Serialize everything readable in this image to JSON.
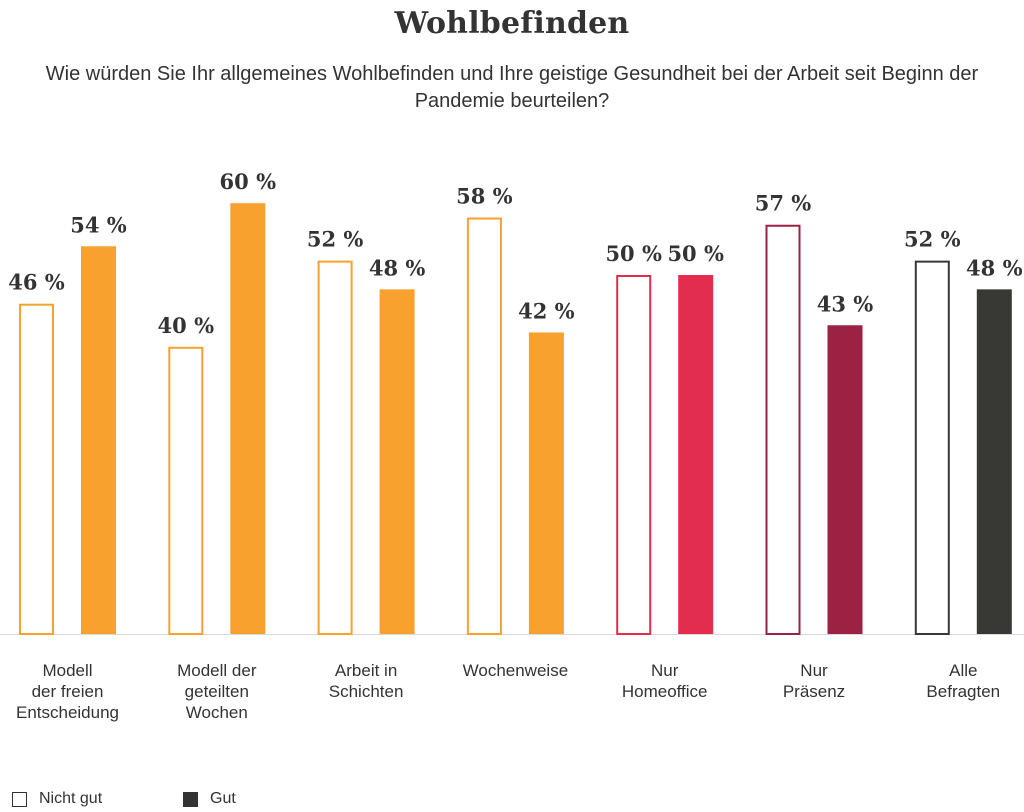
{
  "header": {
    "title": "Wohlbefinden",
    "subtitle": "Wie würden Sie Ihr allgemeines Wohlbefinden und Ihre geistige Gesundheit bei der Arbeit seit Beginn der Pandemie beurteilen?"
  },
  "legend": {
    "nicht_gut": "Nicht gut",
    "gut": "Gut"
  },
  "chart_data": {
    "type": "bar",
    "title": "Wohlbefinden",
    "subtitle": "Wie würden Sie Ihr allgemeines Wohlbefinden und Ihre geistige Gesundheit bei der Arbeit seit Beginn der Pandemie beurteilen?",
    "value_suffix": " %",
    "ylim": [
      0,
      60
    ],
    "grid": false,
    "legend_position": "bottom-left",
    "categories": [
      {
        "label": [
          "Modell",
          "der freien",
          "Entscheidung"
        ],
        "color": "#F9A12E"
      },
      {
        "label": [
          "Modell der",
          "geteilten",
          "Wochen"
        ],
        "color": "#F9A12E"
      },
      {
        "label": [
          "Arbeit in",
          "Schichten"
        ],
        "color": "#F9A12E"
      },
      {
        "label": [
          "Wochenweise"
        ],
        "color": "#F9A12E"
      },
      {
        "label": [
          "Nur",
          "Homeoffice"
        ],
        "color": "#E22D4E"
      },
      {
        "label": [
          "Nur",
          "Präsenz"
        ],
        "color": "#9B2242"
      },
      {
        "label": [
          "Alle",
          "Befragten"
        ],
        "color": "#383835"
      }
    ],
    "series": [
      {
        "name": "Nicht gut",
        "style": "outline",
        "values": [
          46,
          40,
          52,
          58,
          50,
          57,
          52
        ]
      },
      {
        "name": "Gut",
        "style": "filled",
        "values": [
          54,
          60,
          48,
          42,
          50,
          43,
          48
        ]
      }
    ]
  }
}
